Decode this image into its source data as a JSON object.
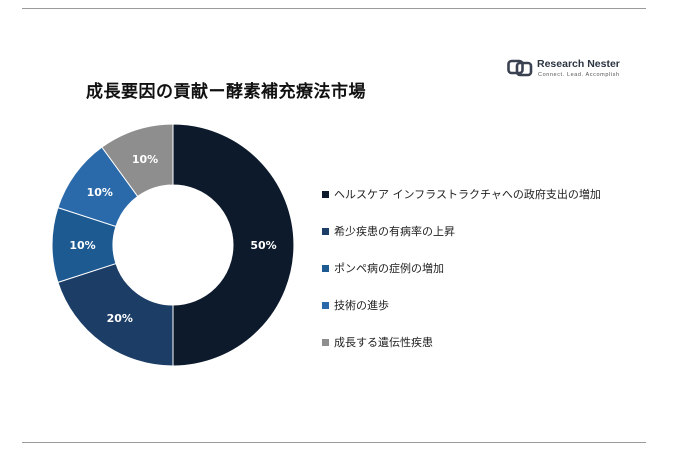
{
  "chart_data": {
    "type": "pie",
    "title": "成長要因の貢献ー酵素補充療法市場",
    "donut": true,
    "legend_position": "right",
    "categories": [
      "ヘルスケア インフラストラクチャへの政府支出の増加",
      " 希少疾患の有病率の上昇",
      "ポンペ病の症例の増加",
      "技術の進歩",
      "成長する遺伝性疾患"
    ],
    "values": [
      50,
      20,
      10,
      10,
      10
    ],
    "data_labels": [
      "50%",
      "20%",
      "10%",
      "10%",
      "10%"
    ],
    "colors": [
      "#0c1a2c",
      "#1b3d66",
      "#1d5a92",
      "#2a6aab",
      "#8e8e8e"
    ]
  },
  "logo": {
    "name": "Research Nester",
    "tagline": "Connect. Lead. Accomplish"
  }
}
